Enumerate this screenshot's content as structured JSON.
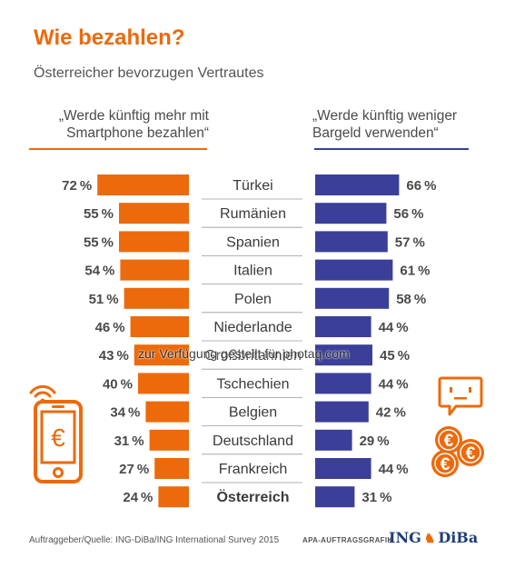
{
  "title": "Wie bezahlen?",
  "subtitle": "Österreicher bevorzugen Vertrautes",
  "left_header": [
    "„Werde künftig mehr mit",
    "Smartphone bezahlen“"
  ],
  "right_header": [
    "„Werde künftig weniger",
    "Bargeld verwenden“"
  ],
  "footer": "Auftraggeber/Quelle: ING-DiBa/ING International Survey 2015",
  "footer_right": "APA-AUFTRAGSGRAFIK",
  "logo": {
    "ing": "ING",
    "diba": "DiBa"
  },
  "watermark": "zur Verfügung gestellt für photaq.com",
  "colors": {
    "left": "#ec6a0c",
    "right": "#3b3f99",
    "title": "#ec6a0c"
  },
  "icons": [
    "smartphone-euro-icon",
    "wifi-icon",
    "speech-bubble-icon",
    "euro-coins-icon"
  ],
  "chart_data": {
    "type": "bar",
    "layout": "butterfly",
    "categories": [
      "Türkei",
      "Rumänien",
      "Spanien",
      "Italien",
      "Polen",
      "Niederlande",
      "Großbritannien",
      "Tschechien",
      "Belgien",
      "Deutschland",
      "Frankreich",
      "Österreich"
    ],
    "highlight": "Österreich",
    "unit": "%",
    "xlim": [
      0,
      100
    ],
    "series": [
      {
        "name": "Werde künftig mehr mit Smartphone bezahlen",
        "side": "left",
        "values": [
          72,
          55,
          55,
          54,
          51,
          46,
          43,
          40,
          34,
          31,
          27,
          24
        ]
      },
      {
        "name": "Werde künftig weniger Bargeld verwenden",
        "side": "right",
        "values": [
          66,
          56,
          57,
          61,
          58,
          44,
          45,
          44,
          42,
          29,
          44,
          31
        ]
      }
    ]
  }
}
